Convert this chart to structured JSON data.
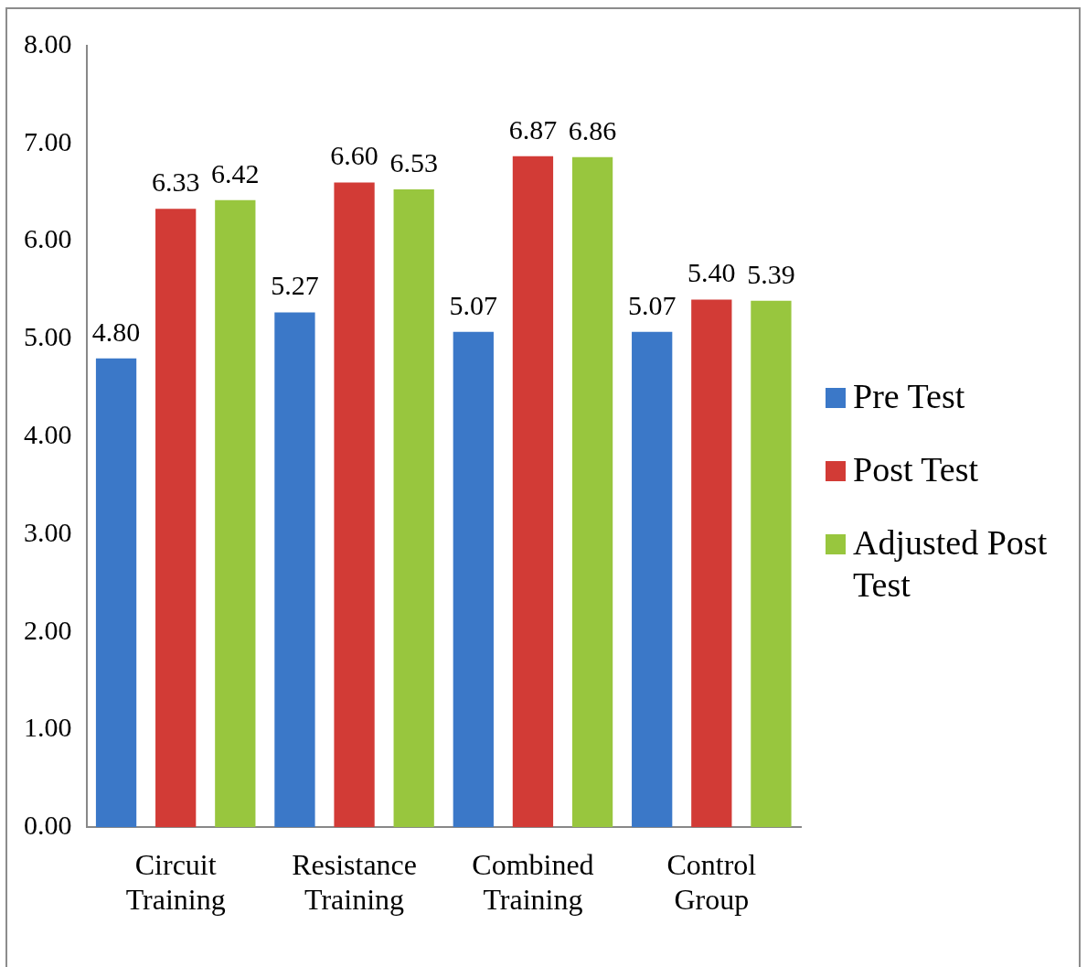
{
  "chart_data": {
    "type": "bar",
    "categories": [
      "Circuit Training",
      "Resistance Training",
      "Combined Training",
      "Control Group"
    ],
    "series": [
      {
        "name": "Pre Test",
        "color": "#3b78c8",
        "values": [
          4.8,
          5.27,
          5.07,
          5.07
        ],
        "value_labels": [
          "4.80",
          "5.27",
          "5.07",
          "5.07"
        ]
      },
      {
        "name": "Post Test",
        "color": "#d23b36",
        "values": [
          6.33,
          6.6,
          6.87,
          5.4
        ],
        "value_labels": [
          "6.33",
          "6.60",
          "6.87",
          "5.40"
        ]
      },
      {
        "name": "Adjusted Post Test",
        "color": "#98c63e",
        "values": [
          6.42,
          6.53,
          6.86,
          5.39
        ],
        "value_labels": [
          "6.42",
          "6.53",
          "6.86",
          "5.39"
        ]
      }
    ],
    "ylim": [
      0,
      8
    ],
    "yticks": [
      {
        "value": 0,
        "label": "0.00"
      },
      {
        "value": 1,
        "label": "1.00"
      },
      {
        "value": 2,
        "label": "2.00"
      },
      {
        "value": 3,
        "label": "3.00"
      },
      {
        "value": 4,
        "label": "4.00"
      },
      {
        "value": 5,
        "label": "5.00"
      },
      {
        "value": 6,
        "label": "6.00"
      },
      {
        "value": 7,
        "label": "7.00"
      },
      {
        "value": 8,
        "label": "8.00"
      }
    ],
    "grid": false,
    "legend": "right"
  }
}
